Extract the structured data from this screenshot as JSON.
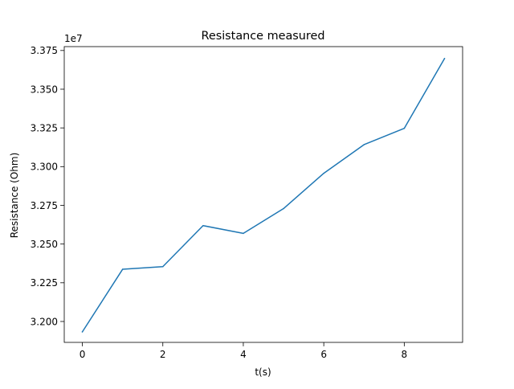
{
  "chart_data": {
    "type": "line",
    "title": "Resistance measured",
    "xlabel": "t(s)",
    "ylabel": "Resistance (Ohm)",
    "y_offset_label": "1e7",
    "y_scale_factor": 10000000,
    "xlim": [
      -0.45,
      9.45
    ],
    "ylim": [
      3.1865,
      3.3775
    ],
    "xticks": [
      0,
      2,
      4,
      6,
      8
    ],
    "xtick_labels": [
      "0",
      "2",
      "4",
      "6",
      "8"
    ],
    "yticks": [
      3.2,
      3.225,
      3.25,
      3.275,
      3.3,
      3.325,
      3.35,
      3.375
    ],
    "ytick_labels": [
      "3.200",
      "3.225",
      "3.250",
      "3.275",
      "3.300",
      "3.325",
      "3.350",
      "3.375"
    ],
    "grid": false,
    "series": [
      {
        "color": "#1f77b4",
        "x": [
          0,
          1,
          2,
          3,
          4,
          5,
          6,
          7,
          8,
          9
        ],
        "y": [
          3.1933,
          3.2337,
          3.2354,
          3.2619,
          3.2569,
          3.2729,
          3.2957,
          3.3142,
          3.3247,
          3.3698
        ]
      }
    ]
  }
}
